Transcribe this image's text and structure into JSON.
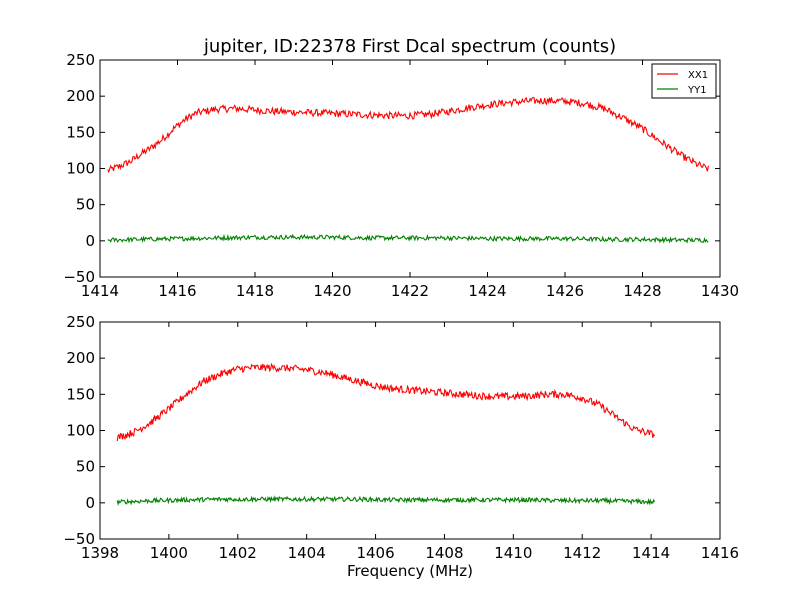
{
  "chart_data": {
    "type": "line",
    "title": "jupiter, ID:22378 First Dcal spectrum (counts)",
    "xlabel": "Frequency (MHz)",
    "ylabel": "",
    "legend": {
      "placement": "top-right",
      "entries": [
        "XX1",
        "YY1"
      ]
    },
    "colors": {
      "XX1": "#ff0000",
      "YY1": "#008000"
    },
    "grid": false,
    "panels": [
      {
        "xlim": [
          1414,
          1430
        ],
        "ylim": [
          -50,
          250
        ],
        "xticks": [
          1414,
          1416,
          1418,
          1420,
          1422,
          1424,
          1426,
          1428,
          1430
        ],
        "yticks": [
          -50,
          0,
          50,
          100,
          150,
          200,
          250
        ],
        "series": [
          {
            "name": "XX1",
            "color": "#ff0000",
            "x": [
              1414.2,
              1414.5,
              1414.8,
              1415.0,
              1415.3,
              1415.6,
              1415.9,
              1416.2,
              1416.5,
              1417.0,
              1417.5,
              1418.0,
              1418.5,
              1419.0,
              1419.5,
              1420.0,
              1420.5,
              1421.0,
              1421.5,
              1422.0,
              1422.5,
              1423.0,
              1423.5,
              1424.0,
              1424.5,
              1425.0,
              1425.5,
              1426.0,
              1426.5,
              1427.0,
              1427.5,
              1428.0,
              1428.5,
              1429.0,
              1429.4,
              1429.7
            ],
            "y": [
              97,
              103,
              110,
              118,
              128,
              140,
              155,
              168,
              177,
              182,
              183,
              181,
              179,
              178,
              177,
              176,
              175,
              174,
              173,
              173,
              175,
              179,
              184,
              188,
              191,
              193,
              194,
              193,
              190,
              183,
              170,
              155,
              136,
              118,
              106,
              99
            ]
          },
          {
            "name": "YY1",
            "color": "#008000",
            "x": [
              1414.2,
              1415.0,
              1416.0,
              1417.0,
              1418.0,
              1419.0,
              1420.0,
              1421.0,
              1422.0,
              1423.0,
              1424.0,
              1425.0,
              1426.0,
              1427.0,
              1428.0,
              1429.0,
              1429.7
            ],
            "y": [
              1,
              2,
              3,
              4,
              5,
              5,
              5,
              4,
              4,
              4,
              3,
              3,
              3,
              2,
              2,
              1,
              1
            ]
          }
        ]
      },
      {
        "xlim": [
          1398,
          1416
        ],
        "ylim": [
          -50,
          250
        ],
        "xticks": [
          1398,
          1400,
          1402,
          1404,
          1406,
          1408,
          1410,
          1412,
          1414,
          1416
        ],
        "yticks": [
          -50,
          0,
          50,
          100,
          150,
          200,
          250
        ],
        "series": [
          {
            "name": "XX1",
            "color": "#ff0000",
            "x": [
              1398.5,
              1399.0,
              1399.5,
              1400.0,
              1400.5,
              1401.0,
              1401.5,
              1402.0,
              1402.5,
              1403.0,
              1403.5,
              1404.0,
              1404.5,
              1405.0,
              1405.5,
              1406.0,
              1406.5,
              1407.0,
              1407.5,
              1408.0,
              1408.5,
              1409.0,
              1409.5,
              1410.0,
              1410.5,
              1411.0,
              1411.5,
              1412.0,
              1412.5,
              1413.0,
              1413.5,
              1414.1
            ],
            "y": [
              90,
              98,
              112,
              130,
              150,
              168,
              178,
              185,
              187,
              187,
              186,
              184,
              180,
              174,
              168,
              162,
              158,
              156,
              154,
              152,
              150,
              148,
              147,
              147,
              148,
              150,
              150,
              145,
              135,
              118,
              102,
              94
            ]
          },
          {
            "name": "YY1",
            "color": "#008000",
            "x": [
              1398.5,
              1399.5,
              1400.5,
              1401.5,
              1402.5,
              1403.5,
              1404.5,
              1405.5,
              1406.5,
              1407.5,
              1408.5,
              1409.5,
              1410.5,
              1411.5,
              1412.5,
              1413.5,
              1414.1
            ],
            "y": [
              1,
              3,
              4,
              5,
              5,
              5,
              5,
              5,
              4,
              4,
              4,
              4,
              4,
              3,
              3,
              2,
              1
            ]
          }
        ]
      }
    ]
  }
}
